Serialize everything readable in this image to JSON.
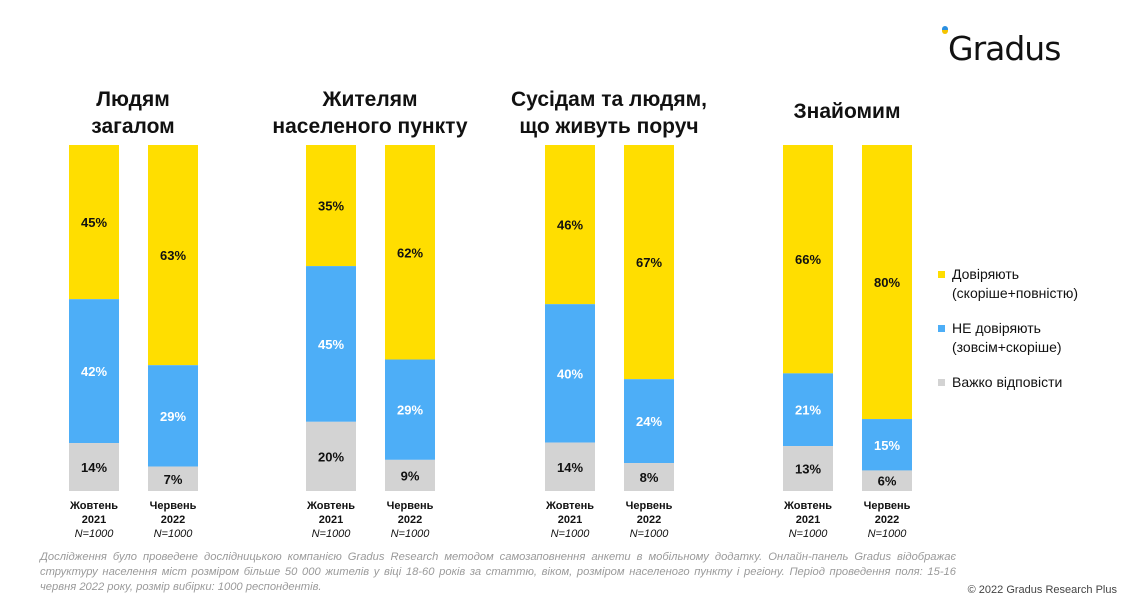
{
  "logo": {
    "text": "Gradus"
  },
  "legend": [
    {
      "lines": [
        "Довіряють",
        "(скоріше+повністю)"
      ],
      "color": "#FFDE00"
    },
    {
      "lines": [
        "НЕ довіряють",
        "(зовсім+скоріше)"
      ],
      "color": "#4DAEF7"
    },
    {
      "lines": [
        "Важко відповісти"
      ],
      "color": "#D3D3D3"
    }
  ],
  "note": "Дослідження було проведене дослідницькою компанією Gradus Research методом самозаповнення анкети в мобільному додатку. Онлайн-панель Gradus відображає структуру населення міст розміром більше 50 000 жителів у віці 18-60 років за статтю, віком, розміром населеного пункту і регіону. Період проведення поля: 15-16 червня 2022 року, розмір вибірки: 1000 респондентів.",
  "copyright": "© 2022 Gradus Research Plus",
  "chart_data": {
    "type": "bar",
    "stacked": true,
    "normalized_percent": true,
    "series": [
      {
        "name": "Довіряють (скоріше+повністю)",
        "color": "#FFDE00"
      },
      {
        "name": "НЕ довіряють (зовсім+скоріше)",
        "color": "#4DAEF7"
      },
      {
        "name": "Важко відповісти",
        "color": "#D3D3D3"
      }
    ],
    "groups": [
      {
        "title": [
          "Людям",
          "загалом"
        ],
        "bars": [
          {
            "label": [
              "Жовтень",
              "2021"
            ],
            "n": "N=1000",
            "values": [
              45,
              42,
              14
            ]
          },
          {
            "label": [
              "Червень",
              "2022"
            ],
            "n": "N=1000",
            "values": [
              63,
              29,
              7
            ]
          }
        ]
      },
      {
        "title": [
          "Жителям",
          "населеного пункту"
        ],
        "bars": [
          {
            "label": [
              "Жовтень",
              "2021"
            ],
            "n": "N=1000",
            "values": [
              35,
              45,
              20
            ]
          },
          {
            "label": [
              "Червень",
              "2022"
            ],
            "n": "N=1000",
            "values": [
              62,
              29,
              9
            ]
          }
        ]
      },
      {
        "title": [
          "Сусідам та людям,",
          "що живуть поруч"
        ],
        "bars": [
          {
            "label": [
              "Жовтень",
              "2021"
            ],
            "n": "N=1000",
            "values": [
              46,
              40,
              14
            ]
          },
          {
            "label": [
              "Червень",
              "2022"
            ],
            "n": "N=1000",
            "values": [
              67,
              24,
              8
            ]
          }
        ]
      },
      {
        "title": [
          "Знайомим"
        ],
        "bars": [
          {
            "label": [
              "Жовтень",
              "2021"
            ],
            "n": "N=1000",
            "values": [
              66,
              21,
              13
            ]
          },
          {
            "label": [
              "Червень",
              "2022"
            ],
            "n": "N=1000",
            "values": [
              80,
              15,
              6
            ]
          }
        ]
      }
    ]
  }
}
